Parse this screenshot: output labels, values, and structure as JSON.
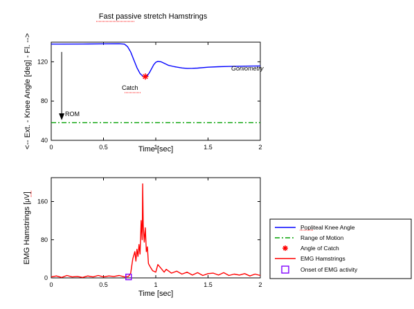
{
  "figure_title": "Fast passive stretch Hamstrings",
  "legend": {
    "entries": [
      {
        "label": "Popliteal Knee Angle",
        "marker": "line",
        "color": "#0000ff",
        "dash": "solid"
      },
      {
        "label": "Range of Motion",
        "marker": "line",
        "color": "#00a000",
        "dash": "dashdot"
      },
      {
        "label": "Angle of Catch",
        "marker": "asterisk",
        "color": "#ff0000"
      },
      {
        "label": "EMG Hamstrings",
        "marker": "line",
        "color": "#ff0000",
        "dash": "solid"
      },
      {
        "label": "Onset of EMG activity",
        "marker": "square",
        "color": "#7f00ff"
      }
    ]
  },
  "chart_data": [
    {
      "type": "line",
      "title": "Fast passive stretch Hamstrings",
      "xlabel": "Time [sec]",
      "ylabel": "<-- Ext. - Knee Angle [deg] - Fl. -->",
      "xlim": [
        0,
        2
      ],
      "ylim": [
        40,
        140
      ],
      "xticks": [
        0,
        0.5,
        1,
        1.5,
        2
      ],
      "xtick_labels": [
        "0",
        "0.5",
        "1",
        "1.5",
        "2"
      ],
      "yticks": [
        40,
        80,
        120
      ],
      "ytick_labels": [
        "40",
        "80",
        "120"
      ],
      "grid": false,
      "series": [
        {
          "name": "Popliteal Knee Angle",
          "color": "#0000ff",
          "x": [
            0,
            0.1,
            0.3,
            0.5,
            0.65,
            0.7,
            0.73,
            0.76,
            0.79,
            0.82,
            0.85,
            0.88,
            0.9,
            0.92,
            0.94,
            0.96,
            0.98,
            1.0,
            1.02,
            1.05,
            1.08,
            1.12,
            1.18,
            1.25,
            1.3,
            1.35,
            1.4,
            1.5,
            1.6,
            1.7,
            1.8,
            1.9,
            2.0
          ],
          "y": [
            138,
            138,
            138.1,
            138.3,
            138.4,
            138,
            135.5,
            130,
            122,
            114,
            108,
            105,
            104.5,
            106,
            109,
            113,
            117,
            119.5,
            120.5,
            120,
            118.5,
            116.5,
            115,
            113.7,
            113.3,
            113.4,
            113.6,
            114.5,
            115,
            115.3,
            115.5,
            115.6,
            115.8
          ]
        },
        {
          "name": "Range of Motion",
          "color": "#00a000",
          "x": [
            0,
            2
          ],
          "y": [
            58,
            58
          ]
        }
      ],
      "markers": [
        {
          "name": "Angle of Catch",
          "x": 0.9,
          "y": 105
        }
      ],
      "annotations": [
        {
          "text": "Goniometry",
          "x": 1.79,
          "y": 119,
          "style": "italic"
        },
        {
          "text": "Catch",
          "x": 0.82,
          "y": 108
        },
        {
          "text": "ROM",
          "x": 0.15,
          "y": 65,
          "arrow_from": [
            0.1,
            130
          ],
          "arrow_to": [
            0.1,
            64
          ]
        }
      ]
    },
    {
      "type": "line",
      "xlabel": "Time [sec]",
      "ylabel": "EMG Hamstrings [uV]",
      "xlim": [
        0,
        2
      ],
      "ylim": [
        0,
        210
      ],
      "xticks": [
        0,
        0.5,
        1,
        1.5,
        2
      ],
      "xtick_labels": [
        "0",
        "0.5",
        "1",
        "1.5",
        "2"
      ],
      "yticks": [
        0,
        80,
        160
      ],
      "ytick_labels": [
        "0",
        "80",
        "160"
      ],
      "grid": false,
      "series": [
        {
          "name": "EMG Hamstrings",
          "color": "#ff0000",
          "x": [
            0,
            0.05,
            0.1,
            0.15,
            0.2,
            0.25,
            0.3,
            0.35,
            0.4,
            0.45,
            0.5,
            0.55,
            0.6,
            0.65,
            0.7,
            0.74,
            0.76,
            0.78,
            0.8,
            0.81,
            0.82,
            0.83,
            0.84,
            0.85,
            0.86,
            0.87,
            0.875,
            0.88,
            0.89,
            0.9,
            0.91,
            0.92,
            0.93,
            0.95,
            0.97,
            1.0,
            1.02,
            1.05,
            1.08,
            1.1,
            1.15,
            1.2,
            1.25,
            1.3,
            1.35,
            1.4,
            1.45,
            1.5,
            1.55,
            1.6,
            1.65,
            1.7,
            1.75,
            1.8,
            1.85,
            1.9,
            1.95,
            2.0
          ],
          "y": [
            2,
            4,
            1,
            5,
            2,
            3,
            1,
            4,
            2,
            5,
            2,
            4,
            3,
            5,
            2,
            3,
            10,
            40,
            55,
            35,
            60,
            45,
            70,
            50,
            120,
            80,
            197,
            110,
            75,
            105,
            55,
            65,
            30,
            22,
            15,
            12,
            28,
            20,
            12,
            18,
            10,
            14,
            8,
            12,
            6,
            11,
            5,
            9,
            10,
            6,
            11,
            5,
            8,
            6,
            9,
            4,
            8,
            5
          ]
        }
      ],
      "markers": [
        {
          "name": "Onset of EMG activity",
          "x": 0.74,
          "y": 2
        }
      ]
    }
  ]
}
